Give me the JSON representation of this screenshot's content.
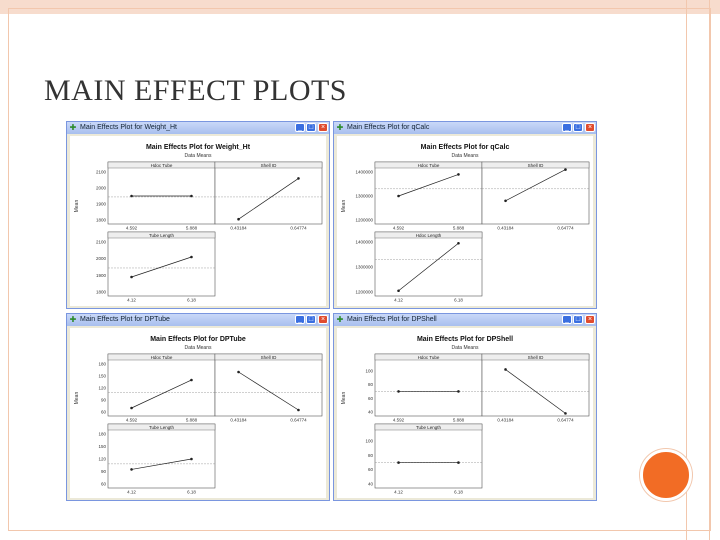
{
  "slide": {
    "title": "MAIN EFFECT PLOTS",
    "colors": {
      "accent": "#f26c25",
      "border": "#f2c7ad",
      "window_frame": "#7a96df"
    }
  },
  "chart_data": [
    {
      "type": "line",
      "window_title": "Main Effects Plot for Weight_Ht",
      "title": "Main Effects Plot for Weight_Ht",
      "subtitle": "Data Means",
      "ylabel": "Mean",
      "ylim": [
        1800,
        2100
      ],
      "yticks": [
        "2100",
        "2000",
        "1900",
        "1800"
      ],
      "panels": [
        {
          "name": "Hdoc Tube",
          "categories": [
            "4.592",
            "5.888"
          ],
          "values": [
            1950,
            1950
          ]
        },
        {
          "name": "Shell ID",
          "categories": [
            "0.43184",
            "0.64774"
          ],
          "values": [
            1805,
            2060
          ]
        },
        {
          "name": "Tube Length",
          "categories": [
            "4.12",
            "6.18"
          ],
          "values": [
            1890,
            2010
          ]
        }
      ]
    },
    {
      "type": "line",
      "window_title": "Main Effects Plot for qCalc",
      "title": "Main Effects Plot for qCalc",
      "subtitle": "Data Means",
      "ylabel": "Mean",
      "ylim": [
        1200000,
        1400000
      ],
      "yticks": [
        "1400000",
        "1300000",
        "1200000"
      ],
      "panels": [
        {
          "name": "Hdoc Tube",
          "categories": [
            "4.592",
            "5.888"
          ],
          "values": [
            1300000,
            1390000
          ]
        },
        {
          "name": "Shell ID",
          "categories": [
            "0.43184",
            "0.64774"
          ],
          "values": [
            1280000,
            1410000
          ]
        },
        {
          "name": "Hdoc Length",
          "categories": [
            "4.12",
            "6.18"
          ],
          "values": [
            1205000,
            1395000
          ]
        }
      ]
    },
    {
      "type": "line",
      "window_title": "Main Effects Plot for DPTube",
      "title": "Main Effects Plot for DPTube",
      "subtitle": "Data Means",
      "ylabel": "Mean",
      "ylim": [
        60,
        180
      ],
      "yticks": [
        "180",
        "150",
        "120",
        "90",
        "60"
      ],
      "panels": [
        {
          "name": "Hdoc Tube",
          "categories": [
            "4.592",
            "5.888"
          ],
          "values": [
            70,
            140
          ]
        },
        {
          "name": "Shell ID",
          "categories": [
            "0.43184",
            "0.64774"
          ],
          "values": [
            160,
            65
          ]
        },
        {
          "name": "Tube Length",
          "categories": [
            "4.12",
            "6.18"
          ],
          "values": [
            95,
            120
          ]
        }
      ]
    },
    {
      "type": "line",
      "window_title": "Main Effects Plot for DPShell",
      "title": "Main Effects Plot for DPShell",
      "subtitle": "Data Means",
      "ylabel": "Mean",
      "ylim": [
        40,
        110
      ],
      "yticks": [
        "100",
        "80",
        "60",
        "40"
      ],
      "panels": [
        {
          "name": "Hdoc Tube",
          "categories": [
            "4.592",
            "5.888"
          ],
          "values": [
            70,
            70
          ]
        },
        {
          "name": "Shell ID",
          "categories": [
            "0.43184",
            "0.64774"
          ],
          "values": [
            102,
            38
          ]
        },
        {
          "name": "Tube Length",
          "categories": [
            "4.12",
            "6.18"
          ],
          "values": [
            70,
            70
          ]
        }
      ]
    }
  ]
}
